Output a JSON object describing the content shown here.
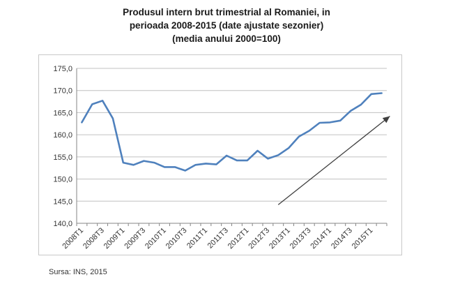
{
  "title": {
    "line1": "Produsul intern brut trimestrial al Romaniei, in",
    "line2": "perioada 2008-2015 (date ajustate sezonier)",
    "line3": "(media anului 2000=100)"
  },
  "source": "Sursa: INS, 2015",
  "colors": {
    "series": "#4f81bd",
    "grid": "#c0c0c0",
    "arrow": "#404040"
  },
  "chart_data": {
    "type": "line",
    "x": [
      "2008T1",
      "2008T2",
      "2008T3",
      "2008T4",
      "2009T1",
      "2009T2",
      "2009T3",
      "2009T4",
      "2010T1",
      "2010T2",
      "2010T3",
      "2010T4",
      "2011T1",
      "2011T2",
      "2011T3",
      "2011T4",
      "2012T1",
      "2012T2",
      "2012T3",
      "2012T4",
      "2013T1",
      "2013T2",
      "2013T3",
      "2013T4",
      "2014T1",
      "2014T2",
      "2014T3",
      "2014T4",
      "2015T1",
      "2015T2"
    ],
    "tick_labels": [
      "2008T1",
      "2008T3",
      "2009T1",
      "2009T3",
      "2010T1",
      "2010T3",
      "2011T1",
      "2011T3",
      "2012T1",
      "2012T3",
      "2013T1",
      "2013T3",
      "2014T1",
      "2014T3",
      "2015T1"
    ],
    "y_tick_labels": [
      "140,0",
      "145,0",
      "150,0",
      "155,0",
      "160,0",
      "165,0",
      "170,0",
      "175,0"
    ],
    "series": [
      {
        "values": [
          162.8,
          166.9,
          167.7,
          163.7,
          153.7,
          153.2,
          154.1,
          153.7,
          152.7,
          152.7,
          151.9,
          153.2,
          153.5,
          153.3,
          155.3,
          154.2,
          154.2,
          156.4,
          154.6,
          155.4,
          157.0,
          159.6,
          160.9,
          162.7,
          162.8,
          163.2,
          165.4,
          166.8,
          169.2,
          169.4
        ]
      }
    ],
    "ylim": [
      140,
      175
    ],
    "grid": true,
    "annotation": {
      "type": "arrow",
      "from": [
        "2012T4",
        144.2
      ],
      "to": [
        "2015T2",
        164.2
      ]
    }
  }
}
